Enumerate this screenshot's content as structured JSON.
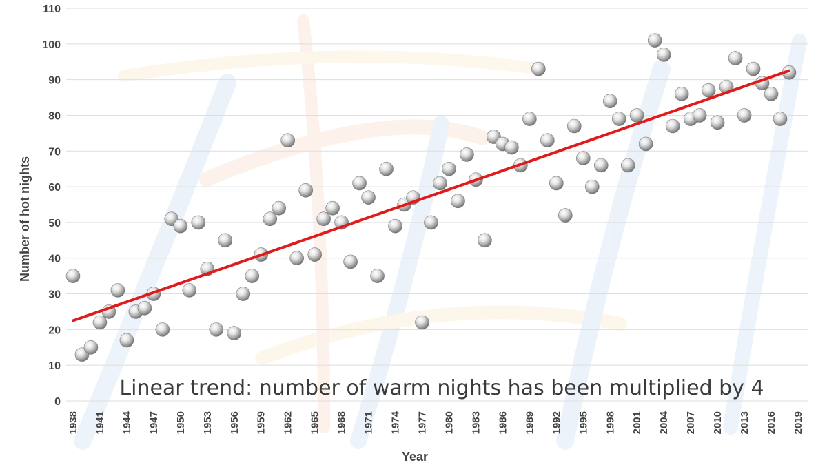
{
  "chart_data": {
    "type": "scatter",
    "title": "",
    "xlabel": "Year",
    "ylabel": "Number of hot nights",
    "annotation": "Linear trend: number of warm nights has been multiplied by 4",
    "xlim": [
      1938,
      2019
    ],
    "ylim": [
      0,
      110
    ],
    "y_ticks": [
      "0",
      "10",
      "20",
      "30",
      "40",
      "50",
      "60",
      "70",
      "80",
      "90",
      "100",
      "110"
    ],
    "x_ticks": [
      "1938",
      "1941",
      "1944",
      "1947",
      "1950",
      "1953",
      "1956",
      "1959",
      "1962",
      "1965",
      "1968",
      "1971",
      "1974",
      "1977",
      "1980",
      "1983",
      "1986",
      "1989",
      "1992",
      "1995",
      "1998",
      "2001",
      "2004",
      "2007",
      "2010",
      "2013",
      "2016",
      "2019"
    ],
    "grid": "horizontal",
    "legend": "none",
    "points": [
      {
        "x": 1938,
        "y": 35
      },
      {
        "x": 1939,
        "y": 13
      },
      {
        "x": 1940,
        "y": 15
      },
      {
        "x": 1941,
        "y": 22
      },
      {
        "x": 1942,
        "y": 25
      },
      {
        "x": 1943,
        "y": 31
      },
      {
        "x": 1944,
        "y": 17
      },
      {
        "x": 1945,
        "y": 25
      },
      {
        "x": 1946,
        "y": 26
      },
      {
        "x": 1947,
        "y": 30
      },
      {
        "x": 1948,
        "y": 20
      },
      {
        "x": 1949,
        "y": 51
      },
      {
        "x": 1950,
        "y": 49
      },
      {
        "x": 1951,
        "y": 31
      },
      {
        "x": 1952,
        "y": 50
      },
      {
        "x": 1953,
        "y": 37
      },
      {
        "x": 1954,
        "y": 20
      },
      {
        "x": 1955,
        "y": 45
      },
      {
        "x": 1956,
        "y": 19
      },
      {
        "x": 1957,
        "y": 30
      },
      {
        "x": 1958,
        "y": 35
      },
      {
        "x": 1959,
        "y": 41
      },
      {
        "x": 1960,
        "y": 51
      },
      {
        "x": 1961,
        "y": 54
      },
      {
        "x": 1962,
        "y": 73
      },
      {
        "x": 1963,
        "y": 40
      },
      {
        "x": 1964,
        "y": 59
      },
      {
        "x": 1965,
        "y": 41
      },
      {
        "x": 1966,
        "y": 51
      },
      {
        "x": 1967,
        "y": 54
      },
      {
        "x": 1968,
        "y": 50
      },
      {
        "x": 1969,
        "y": 39
      },
      {
        "x": 1970,
        "y": 61
      },
      {
        "x": 1971,
        "y": 57
      },
      {
        "x": 1972,
        "y": 35
      },
      {
        "x": 1973,
        "y": 65
      },
      {
        "x": 1974,
        "y": 49
      },
      {
        "x": 1975,
        "y": 55
      },
      {
        "x": 1976,
        "y": 57
      },
      {
        "x": 1977,
        "y": 22
      },
      {
        "x": 1978,
        "y": 50
      },
      {
        "x": 1979,
        "y": 61
      },
      {
        "x": 1980,
        "y": 65
      },
      {
        "x": 1981,
        "y": 56
      },
      {
        "x": 1982,
        "y": 69
      },
      {
        "x": 1983,
        "y": 62
      },
      {
        "x": 1984,
        "y": 45
      },
      {
        "x": 1985,
        "y": 74
      },
      {
        "x": 1986,
        "y": 72
      },
      {
        "x": 1987,
        "y": 71
      },
      {
        "x": 1988,
        "y": 66
      },
      {
        "x": 1989,
        "y": 79
      },
      {
        "x": 1990,
        "y": 93
      },
      {
        "x": 1991,
        "y": 73
      },
      {
        "x": 1992,
        "y": 61
      },
      {
        "x": 1993,
        "y": 52
      },
      {
        "x": 1994,
        "y": 77
      },
      {
        "x": 1995,
        "y": 68
      },
      {
        "x": 1996,
        "y": 60
      },
      {
        "x": 1997,
        "y": 66
      },
      {
        "x": 1998,
        "y": 84
      },
      {
        "x": 1999,
        "y": 79
      },
      {
        "x": 2000,
        "y": 66
      },
      {
        "x": 2001,
        "y": 80
      },
      {
        "x": 2002,
        "y": 72
      },
      {
        "x": 2003,
        "y": 101
      },
      {
        "x": 2004,
        "y": 97
      },
      {
        "x": 2005,
        "y": 77
      },
      {
        "x": 2006,
        "y": 86
      },
      {
        "x": 2007,
        "y": 79
      },
      {
        "x": 2008,
        "y": 80
      },
      {
        "x": 2009,
        "y": 87
      },
      {
        "x": 2010,
        "y": 78
      },
      {
        "x": 2011,
        "y": 88
      },
      {
        "x": 2012,
        "y": 96
      },
      {
        "x": 2013,
        "y": 80
      },
      {
        "x": 2014,
        "y": 93
      },
      {
        "x": 2015,
        "y": 89
      },
      {
        "x": 2016,
        "y": 86
      },
      {
        "x": 2017,
        "y": 79
      },
      {
        "x": 2018,
        "y": 92
      }
    ],
    "trend_line": {
      "x": [
        1938,
        2018
      ],
      "y": [
        22.5,
        92.5
      ],
      "color": "#e01b1b"
    }
  },
  "colors": {
    "marker_light": "#ffffff",
    "marker_dark": "#6f6f6f",
    "grid": "#dedede",
    "text": "#444444",
    "trend": "#e01b1b"
  }
}
